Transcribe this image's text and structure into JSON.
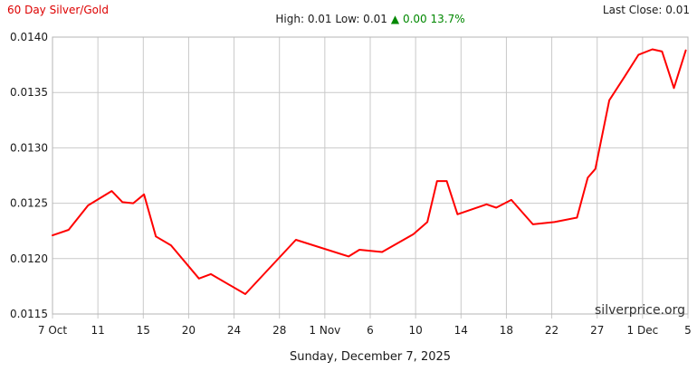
{
  "header": {
    "title": "60 Day Silver/Gold",
    "high_low": "High: 0.01 Low: 0.01",
    "change": "▲ 0.00 13.7%",
    "last_close": "Last Close: 0.01"
  },
  "footer": {
    "date": "Sunday, December 7, 2025"
  },
  "watermark": "silverprice.org",
  "colors": {
    "line": "#ff0000",
    "title": "#dd0000",
    "change_green": "#008800",
    "grid": "#c9c9c9",
    "border": "#b5b5b5",
    "text": "#1a1a1a",
    "watermark": "#333333"
  },
  "chart_data": {
    "type": "line",
    "title": "60 Day Silver/Gold ratio",
    "series_name": "Silver/Gold ratio",
    "x_tick_labels": [
      "7 Oct",
      "11",
      "15",
      "20",
      "24",
      "28",
      "1 Nov",
      "6",
      "10",
      "14",
      "18",
      "22",
      "27",
      "1 Dec",
      "5"
    ],
    "y_tick_labels": [
      "0.0140",
      "0.0135",
      "0.0130",
      "0.0125",
      "0.0120",
      "0.0115"
    ],
    "ylim": [
      0.0115,
      0.014
    ],
    "x_range_days": [
      0,
      59
    ],
    "x_start_date": "7 Oct",
    "x_end_date": "5 Dec",
    "high": 0.0139,
    "low": 0.0117,
    "last_close": 0.0139,
    "change_pct": 13.7,
    "grid": true,
    "points": [
      [
        0.0,
        0.01221
      ],
      [
        1.5,
        0.01226
      ],
      [
        3.3,
        0.01248
      ],
      [
        5.5,
        0.01261
      ],
      [
        6.5,
        0.01251
      ],
      [
        7.5,
        0.0125
      ],
      [
        8.5,
        0.01258
      ],
      [
        9.6,
        0.0122
      ],
      [
        11.0,
        0.01212
      ],
      [
        13.6,
        0.01182
      ],
      [
        14.7,
        0.01186
      ],
      [
        17.9,
        0.01168
      ],
      [
        22.6,
        0.01217
      ],
      [
        27.5,
        0.01202
      ],
      [
        28.5,
        0.01208
      ],
      [
        30.6,
        0.01206
      ],
      [
        33.5,
        0.01222
      ],
      [
        34.8,
        0.01233
      ],
      [
        35.7,
        0.0127
      ],
      [
        36.6,
        0.0127
      ],
      [
        37.6,
        0.0124
      ],
      [
        40.3,
        0.01249
      ],
      [
        41.2,
        0.01246
      ],
      [
        42.6,
        0.01253
      ],
      [
        44.6,
        0.01231
      ],
      [
        46.6,
        0.01233
      ],
      [
        48.7,
        0.01237
      ],
      [
        49.7,
        0.01273
      ],
      [
        50.4,
        0.01281
      ],
      [
        51.7,
        0.01343
      ],
      [
        53.1,
        0.01364
      ],
      [
        54.4,
        0.01384
      ],
      [
        55.7,
        0.01389
      ],
      [
        56.6,
        0.01387
      ],
      [
        57.7,
        0.01354
      ],
      [
        58.8,
        0.01388
      ]
    ]
  }
}
